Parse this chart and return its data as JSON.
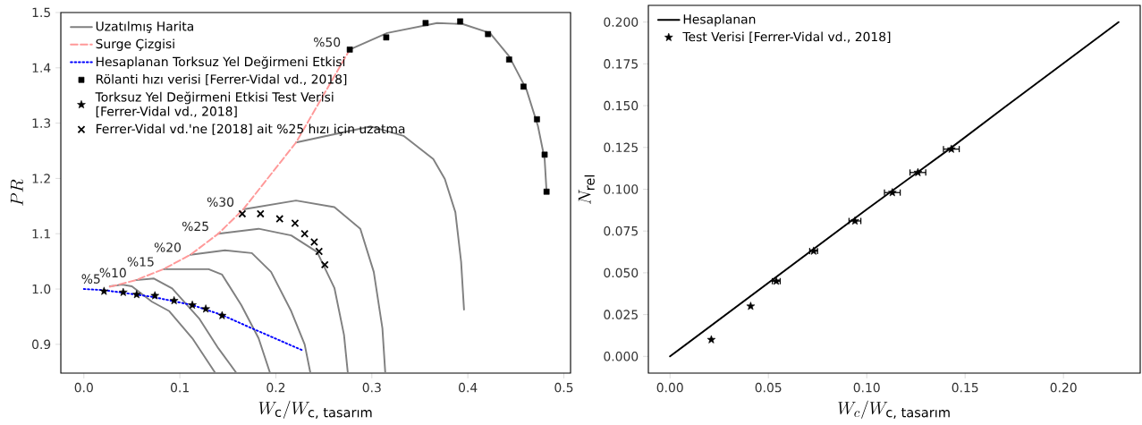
{
  "chart_data": [
    {
      "type": "line",
      "xlabel": "W_{\\text{c}}/W_{\\text{c, tasarım}}",
      "ylabel": "PR",
      "legend": "top left",
      "xlim": [
        -0.024,
        0.507
      ],
      "ylim": [
        0.848,
        1.5
      ],
      "xticks": [
        {
          "value": 0,
          "label": "0.0"
        },
        {
          "value": 0.1,
          "label": "0.1"
        },
        {
          "value": 0.2,
          "label": "0.2"
        },
        {
          "value": 0.3,
          "label": "0.3"
        },
        {
          "value": 0.4,
          "label": "0.4"
        },
        {
          "value": 0.5,
          "label": "0.5"
        }
      ],
      "yticks": [
        {
          "value": 0.9,
          "label": "0.9"
        },
        {
          "value": 1.0,
          "label": "1.0"
        },
        {
          "value": 1.1,
          "label": "1.1"
        },
        {
          "value": 1.2,
          "label": "1.2"
        },
        {
          "value": 1.3,
          "label": "1.3"
        },
        {
          "value": 1.4,
          "label": "1.4"
        },
        {
          "value": 1.5,
          "label": "1.5"
        }
      ],
      "series": [
        {
          "name": "Uzatılmış Harita",
          "color": "#808080",
          "line_style": "solid",
          "x": [
            0.027,
            0.04,
            0.05,
            0.071,
            0.089,
            0.113,
            0.137
          ],
          "values": [
            1.005,
            1.008,
            1.005,
            0.977,
            0.96,
            0.911,
            0.848
          ]
        },
        {
          "color": "#808080",
          "line_style": "solid",
          "x": [
            0.054,
            0.073,
            0.092,
            0.12,
            0.14,
            0.159
          ],
          "values": [
            1.016,
            1.019,
            1.001,
            0.947,
            0.893,
            0.848
          ]
        },
        {
          "color": "#808080",
          "line_style": "solid",
          "x": [
            0.083,
            0.13,
            0.144,
            0.164,
            0.182,
            0.194
          ],
          "values": [
            1.036,
            1.036,
            1.026,
            0.971,
            0.911,
            0.848
          ]
        },
        {
          "color": "#808080",
          "line_style": "solid",
          "x": [
            0.111,
            0.147,
            0.175,
            0.195,
            0.216,
            0.23,
            0.236
          ],
          "values": [
            1.062,
            1.07,
            1.065,
            1.031,
            0.96,
            0.9,
            0.848
          ]
        },
        {
          "color": "#808080",
          "line_style": "solid",
          "x": [
            0.14,
            0.182,
            0.216,
            0.243,
            0.261,
            0.271,
            0.275
          ],
          "values": [
            1.1,
            1.109,
            1.097,
            1.067,
            1.002,
            0.917,
            0.848
          ]
        },
        {
          "color": "#808080",
          "line_style": "solid",
          "x": [
            0.166,
            0.221,
            0.261,
            0.288,
            0.302,
            0.311,
            0.314
          ],
          "values": [
            1.144,
            1.16,
            1.148,
            1.109,
            1.031,
            0.929,
            0.848
          ]
        },
        {
          "color": "#808080",
          "line_style": "solid",
          "x": [
            0.221,
            0.299,
            0.333,
            0.364,
            0.376,
            0.387,
            0.393,
            0.396
          ],
          "values": [
            1.265,
            1.294,
            1.277,
            1.235,
            1.199,
            1.139,
            1.049,
            0.963
          ]
        },
        {
          "color": "#808080",
          "line_style": "solid",
          "x": [
            0.277,
            0.316,
            0.368,
            0.395,
            0.423,
            0.443,
            0.461,
            0.473,
            0.48,
            0.482
          ],
          "values": [
            1.433,
            1.463,
            1.481,
            1.479,
            1.463,
            1.421,
            1.361,
            1.295,
            1.235,
            1.176
          ]
        },
        {
          "name": "Surge Çizgisi",
          "color": "#ff9999",
          "line_style": "dashed",
          "x": [
            0.027,
            0.054,
            0.083,
            0.111,
            0.14,
            0.166,
            0.221,
            0.277
          ],
          "values": [
            1.004,
            1.016,
            1.036,
            1.062,
            1.1,
            1.144,
            1.265,
            1.433
          ]
        },
        {
          "name": "Hesaplanan Torksuz Yel Değirmeni Etkisi",
          "color": "#0000ff",
          "line_style": "dotted",
          "x": [
            0,
            0.021,
            0.071,
            0.113,
            0.144,
            0.175,
            0.228
          ],
          "values": [
            1.0,
            0.998,
            0.986,
            0.971,
            0.953,
            0.929,
            0.889
          ]
        },
        {
          "name": "Rölanti hızı verisi [Ferrer-Vidal vd., 2018]",
          "type": "scatter",
          "color": "#000000",
          "marker": "square",
          "x": [
            0.277,
            0.315,
            0.356,
            0.392,
            0.421,
            0.443,
            0.458,
            0.472,
            0.48,
            0.482
          ],
          "values": [
            1.433,
            1.455,
            1.481,
            1.484,
            1.461,
            1.415,
            1.366,
            1.307,
            1.243,
            1.176
          ]
        },
        {
          "name": "Torksuz Yel Değirmeni Etkisi Test Verisi [Ferrer-Vidal vd., 2018]",
          "type": "scatter",
          "color": "#000000",
          "marker": "star",
          "x": [
            0.021,
            0.041,
            0.055,
            0.074,
            0.094,
            0.113,
            0.127,
            0.144
          ],
          "values": [
            0.996,
            0.994,
            0.99,
            0.988,
            0.979,
            0.971,
            0.964,
            0.952
          ]
        },
        {
          "name": "Ferrer-Vidal vd.'ne [2018] ait %25 hızı için uzatma",
          "type": "scatter",
          "color": "#000000",
          "marker": "cross",
          "x": [
            0.165,
            0.184,
            0.204,
            0.22,
            0.23,
            0.24,
            0.245,
            0.251
          ],
          "values": [
            1.136,
            1.136,
            1.127,
            1.119,
            1.1,
            1.085,
            1.068,
            1.044
          ]
        }
      ],
      "annotations": [
        {
          "text": "%5",
          "x": 0.027,
          "y": 1.005
        },
        {
          "text": "%10",
          "x": 0.054,
          "y": 1.016
        },
        {
          "text": "%15",
          "x": 0.083,
          "y": 1.036
        },
        {
          "text": "%20",
          "x": 0.111,
          "y": 1.062
        },
        {
          "text": "%25",
          "x": 0.14,
          "y": 1.1
        },
        {
          "text": "%30",
          "x": 0.166,
          "y": 1.144
        },
        {
          "text": "%50",
          "x": 0.277,
          "y": 1.433
        }
      ]
    },
    {
      "type": "line",
      "xlabel": "W_c/W_{\\text{c, tasarım}}",
      "ylabel": "N_{\\text{rel}}",
      "legend": "top left",
      "xlim": [
        -0.011,
        0.239
      ],
      "ylim": [
        -0.01,
        0.21
      ],
      "xticks": [
        {
          "value": 0,
          "label": "0.00"
        },
        {
          "value": 0.05,
          "label": "0.05"
        },
        {
          "value": 0.1,
          "label": "0.10"
        },
        {
          "value": 0.15,
          "label": "0.15"
        },
        {
          "value": 0.2,
          "label": "0.20"
        }
      ],
      "yticks": [
        {
          "value": 0,
          "label": "0.000"
        },
        {
          "value": 0.025,
          "label": "0.025"
        },
        {
          "value": 0.05,
          "label": "0.050"
        },
        {
          "value": 0.075,
          "label": "0.075"
        },
        {
          "value": 0.1,
          "label": "0.100"
        },
        {
          "value": 0.125,
          "label": "0.125"
        },
        {
          "value": 0.15,
          "label": "0.150"
        },
        {
          "value": 0.175,
          "label": "0.175"
        },
        {
          "value": 0.2,
          "label": "0.200"
        }
      ],
      "series": [
        {
          "name": "Hesaplanan",
          "color": "#000000",
          "line_style": "solid",
          "x": [
            0,
            0.1,
            0.142,
            0.17,
            0.228
          ],
          "values": [
            0,
            0.088,
            0.124,
            0.149,
            0.2
          ]
        },
        {
          "name": "Test Verisi [Ferrer-Vidal vd., 2018]",
          "type": "scatter",
          "color": "#000000",
          "marker": "star",
          "x": [
            0.021,
            0.041,
            0.054,
            0.073,
            0.094,
            0.113,
            0.126,
            0.143
          ],
          "values": [
            0.01,
            0.03,
            0.045,
            0.063,
            0.081,
            0.098,
            0.11,
            0.124
          ],
          "xerrors": [
            null,
            null,
            0.002,
            0.002,
            0.003,
            0.004,
            0.004,
            0.004
          ]
        }
      ]
    }
  ]
}
